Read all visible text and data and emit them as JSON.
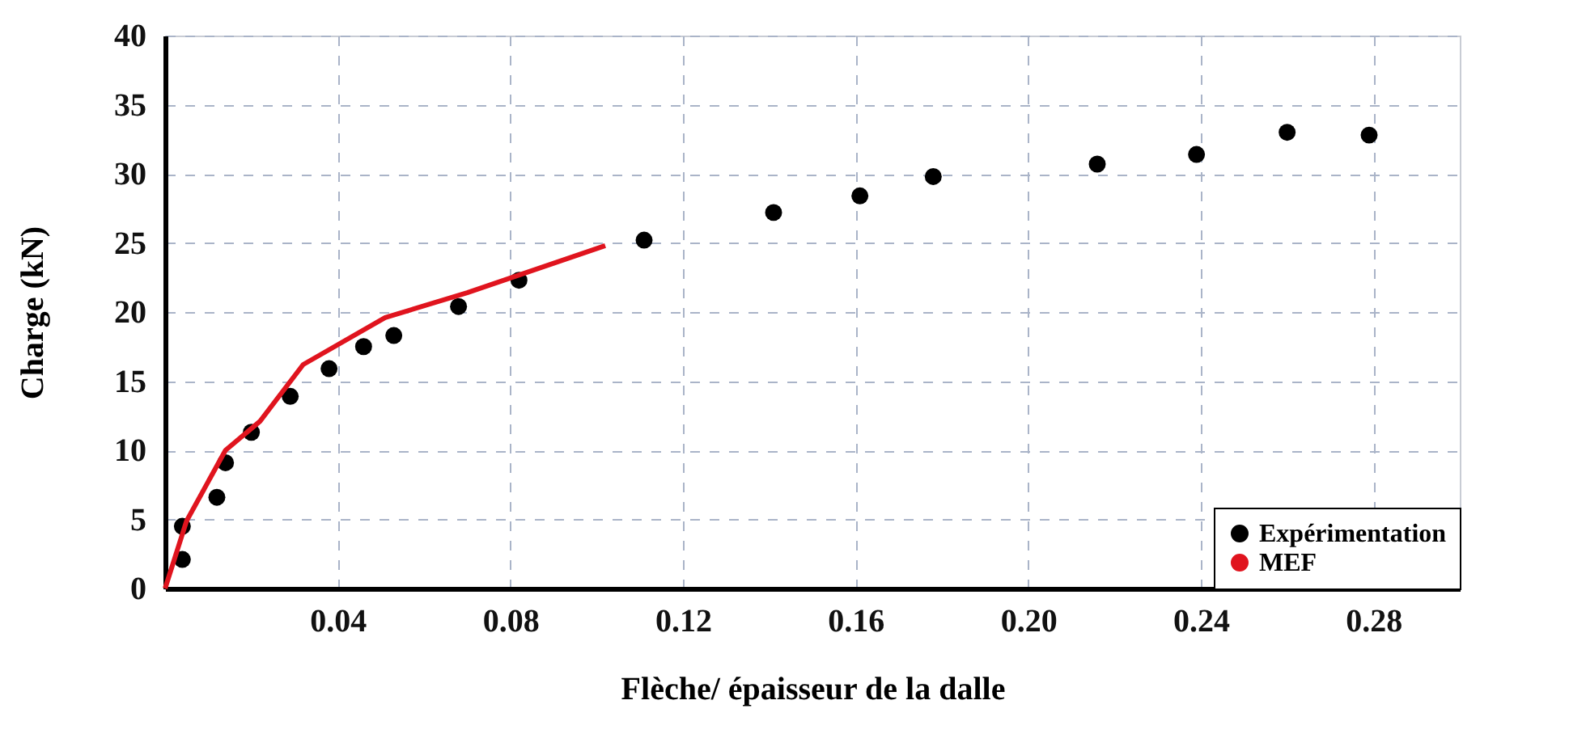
{
  "chart_data": {
    "type": "scatter",
    "xlabel": "Flèche/ épaisseur de la dalle",
    "ylabel": "Charge (kN)",
    "xlim": [
      0,
      0.3
    ],
    "ylim": [
      0,
      40
    ],
    "xticks": [
      0.04,
      0.08,
      0.12,
      0.16,
      {
        "value": 0.2,
        "label": "0.20"
      },
      0.24,
      0.28
    ],
    "yticks": [
      0,
      5,
      10,
      15,
      20,
      25,
      30,
      35,
      40
    ],
    "grid": true,
    "legend": "bottom right",
    "series": [
      {
        "name": "Expérimentation",
        "marker": "circle",
        "color": "#000000",
        "x": [
          0.004,
          0.004,
          0.012,
          0.014,
          0.02,
          0.029,
          0.038,
          0.046,
          0.053,
          0.068,
          0.082,
          0.111,
          0.141,
          0.161,
          0.178,
          0.216,
          0.239,
          0.26,
          0.279
        ],
        "values": [
          2.1,
          4.5,
          6.6,
          9.1,
          11.3,
          13.9,
          15.9,
          17.5,
          18.3,
          20.4,
          22.3,
          25.2,
          27.2,
          28.4,
          29.8,
          30.7,
          31.4,
          33.0,
          32.8
        ]
      },
      {
        "name": "MEF",
        "type": "line",
        "marker": "none",
        "line_style": "solid",
        "color": "#e0141e",
        "x": [
          0,
          0.005,
          0.014,
          0.022,
          0.032,
          0.051,
          0.07,
          0.102
        ],
        "values": [
          0,
          4.9,
          10.0,
          12.1,
          16.2,
          19.6,
          21.4,
          24.8
        ]
      }
    ]
  }
}
